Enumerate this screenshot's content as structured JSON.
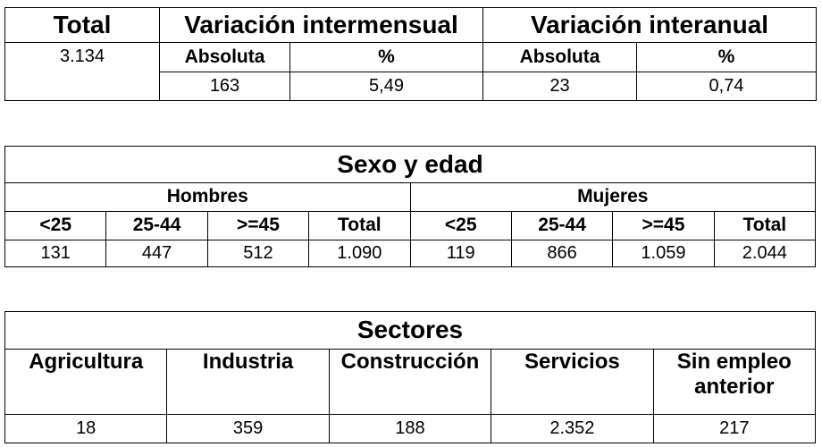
{
  "summary": {
    "header": [
      "Total",
      "Variación intermensual",
      "Variación interanual"
    ],
    "total": "3.134",
    "subheader": [
      "Absoluta",
      "%",
      "Absoluta",
      "%"
    ],
    "values": [
      "163",
      "5,49",
      "23",
      "0,74"
    ]
  },
  "sex_age": {
    "title": "Sexo y edad",
    "groups": [
      "Hombres",
      "Mujeres"
    ],
    "columns": [
      "<25",
      "25-44",
      ">=45",
      "Total",
      "<25",
      "25-44",
      ">=45",
      "Total"
    ],
    "values": [
      "131",
      "447",
      "512",
      "1.090",
      "119",
      "866",
      "1.059",
      "2.044"
    ]
  },
  "sectors": {
    "title": "Sectores",
    "columns": [
      "Agricultura",
      "Industria",
      "Construcción",
      "Servicios",
      "Sin empleo anterior"
    ],
    "values": [
      "18",
      "359",
      "188",
      "2.352",
      "217"
    ]
  }
}
